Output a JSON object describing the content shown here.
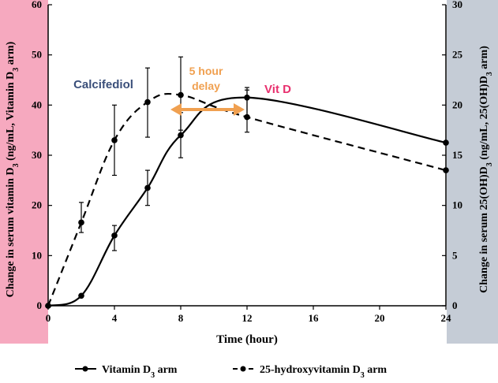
{
  "chart_data": {
    "type": "line",
    "x_axis": {
      "label": "Time (hour)",
      "ticks": [
        0,
        4,
        8,
        12,
        16,
        20,
        24
      ],
      "range": [
        0,
        24
      ]
    },
    "y_left": {
      "label_main": "Change in serum vitamin D",
      "label_sub": "3",
      "label_mid": " (ng/mL, Vitamin D",
      "label_sub2": "3",
      "label_end": " arm)",
      "ticks": [
        0,
        10,
        20,
        30,
        40,
        50,
        60
      ],
      "range": [
        0,
        60
      ],
      "band_color": "#f6a9bf"
    },
    "y_right": {
      "label_a": "Change in serum 25(OH)D",
      "label_sub": "3",
      "label_b": " (ng/mL, 25(OH)D",
      "label_sub2": "3",
      "label_c": " arm)",
      "ticks": [
        0,
        5,
        10,
        15,
        20,
        25,
        30
      ],
      "range": [
        0,
        30
      ],
      "band_color": "#c5ccd6"
    },
    "series": [
      {
        "name": "Vitamin D3 arm",
        "axis": "left",
        "style": "solid",
        "x": [
          0,
          2,
          4,
          6,
          8,
          12,
          24
        ],
        "y": [
          0,
          2,
          14,
          23.5,
          34,
          41.5,
          32.5
        ],
        "err_low": [
          null,
          null,
          11,
          20,
          29.5,
          37.5,
          null
        ],
        "err_high": [
          null,
          null,
          16,
          27,
          38.5,
          43.5,
          null
        ]
      },
      {
        "name": "25-hydroxyvitamin D3 arm",
        "axis": "right",
        "style": "dashed",
        "x": [
          0,
          2,
          4,
          6,
          8,
          12,
          24
        ],
        "y": [
          0,
          8.3,
          16.5,
          20.3,
          21,
          18.8,
          13.5
        ],
        "err_low": [
          null,
          7.3,
          13,
          16.8,
          17.5,
          17.3,
          null
        ],
        "err_high": [
          null,
          10.3,
          20,
          23.7,
          24.8,
          21.5,
          null
        ]
      }
    ],
    "legend": {
      "position": "bottom",
      "vitd_prefix": "Vitamin D",
      "vitd_sub": "3",
      "vitd_suffix": " arm",
      "calc_prefix": "25-hydroxyvitamin D",
      "calc_sub": "3",
      "calc_suffix": " arm"
    },
    "annotations": {
      "calcifediol": "Calcifediol",
      "delay_line1": "5 hour",
      "delay_line2": "delay",
      "vitd": "Vit D"
    },
    "colors": {
      "calcifediol": "#3a4f7a",
      "delay": "#f0a050",
      "vitd": "#e8306e",
      "line": "#000000"
    }
  }
}
